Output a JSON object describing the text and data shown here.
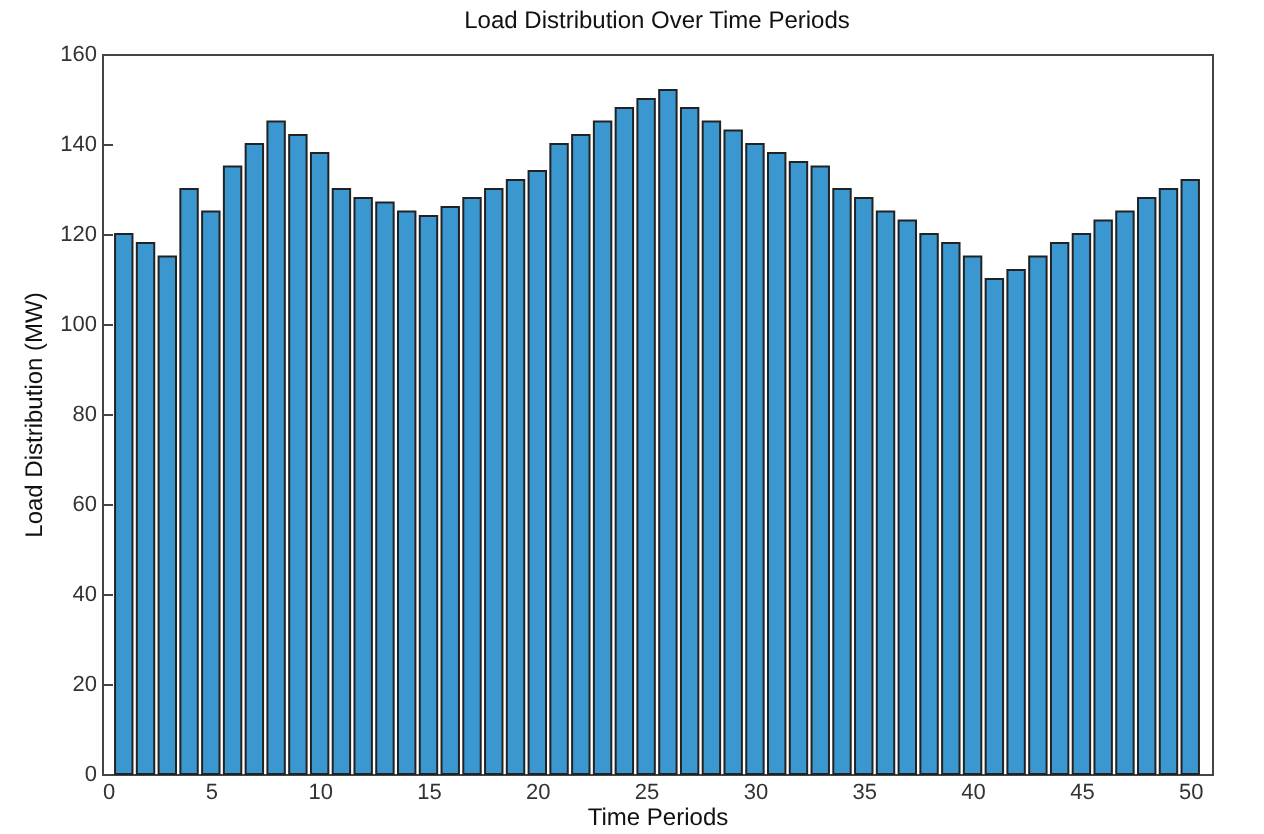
{
  "chart_data": {
    "type": "bar",
    "title": "Load Distribution Over Time Periods",
    "xlabel": "Time Periods",
    "ylabel": "Load Distribution (MW)",
    "x": [
      1,
      2,
      3,
      4,
      5,
      6,
      7,
      8,
      9,
      10,
      11,
      12,
      13,
      14,
      15,
      16,
      17,
      18,
      19,
      20,
      21,
      22,
      23,
      24,
      25,
      26,
      27,
      28,
      29,
      30,
      31,
      32,
      33,
      34,
      35,
      36,
      37,
      38,
      39,
      40,
      41,
      42,
      43,
      44,
      45,
      46,
      47,
      48,
      49,
      50
    ],
    "values": [
      120,
      118,
      115,
      130,
      125,
      135,
      140,
      145,
      142,
      138,
      130,
      128,
      127,
      125,
      124,
      126,
      128,
      130,
      132,
      134,
      140,
      142,
      145,
      148,
      150,
      152,
      148,
      145,
      143,
      140,
      138,
      136,
      135,
      130,
      128,
      125,
      123,
      120,
      118,
      115,
      110,
      112,
      115,
      118,
      120,
      123,
      125,
      128,
      130,
      132
    ],
    "color": "#3a97d0",
    "xlim": [
      0,
      51
    ],
    "xticks": [
      0,
      5,
      10,
      15,
      20,
      25,
      30,
      35,
      40,
      45,
      50
    ],
    "ylim": [
      0,
      160
    ],
    "yticks": [
      0,
      20,
      40,
      60,
      80,
      100,
      120,
      140,
      160
    ],
    "grid": false
  }
}
